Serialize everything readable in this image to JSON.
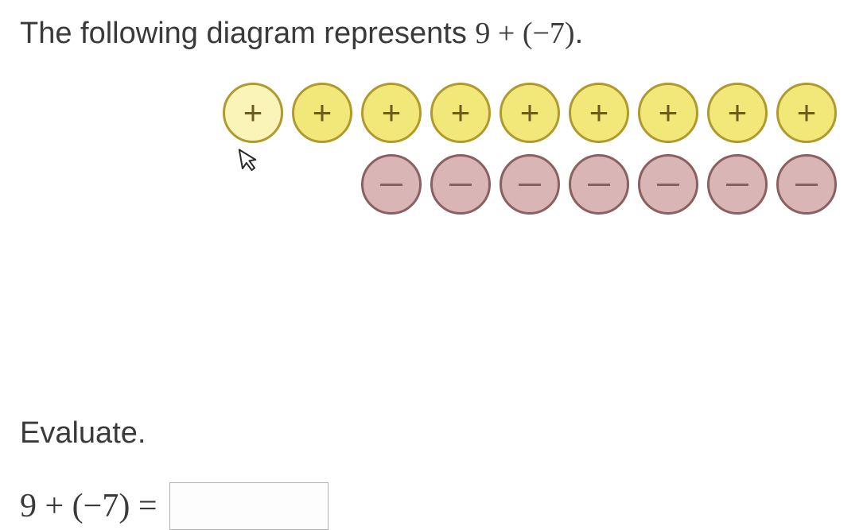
{
  "prompt": {
    "prefix": "The following diagram represents ",
    "expression": "9 + (−7)",
    "suffix": "."
  },
  "diagram": {
    "positive_count": 9,
    "negative_count": 7,
    "positive_symbol": "+",
    "negative_symbol": "−",
    "positive_color": "#f2e87a",
    "positive_border": "#b09a2e",
    "negative_color": "#d9b5b5",
    "negative_border": "#8a6060"
  },
  "evaluate_label": "Evaluate.",
  "equation": {
    "lhs": "9 + (−7) =",
    "answer": ""
  }
}
